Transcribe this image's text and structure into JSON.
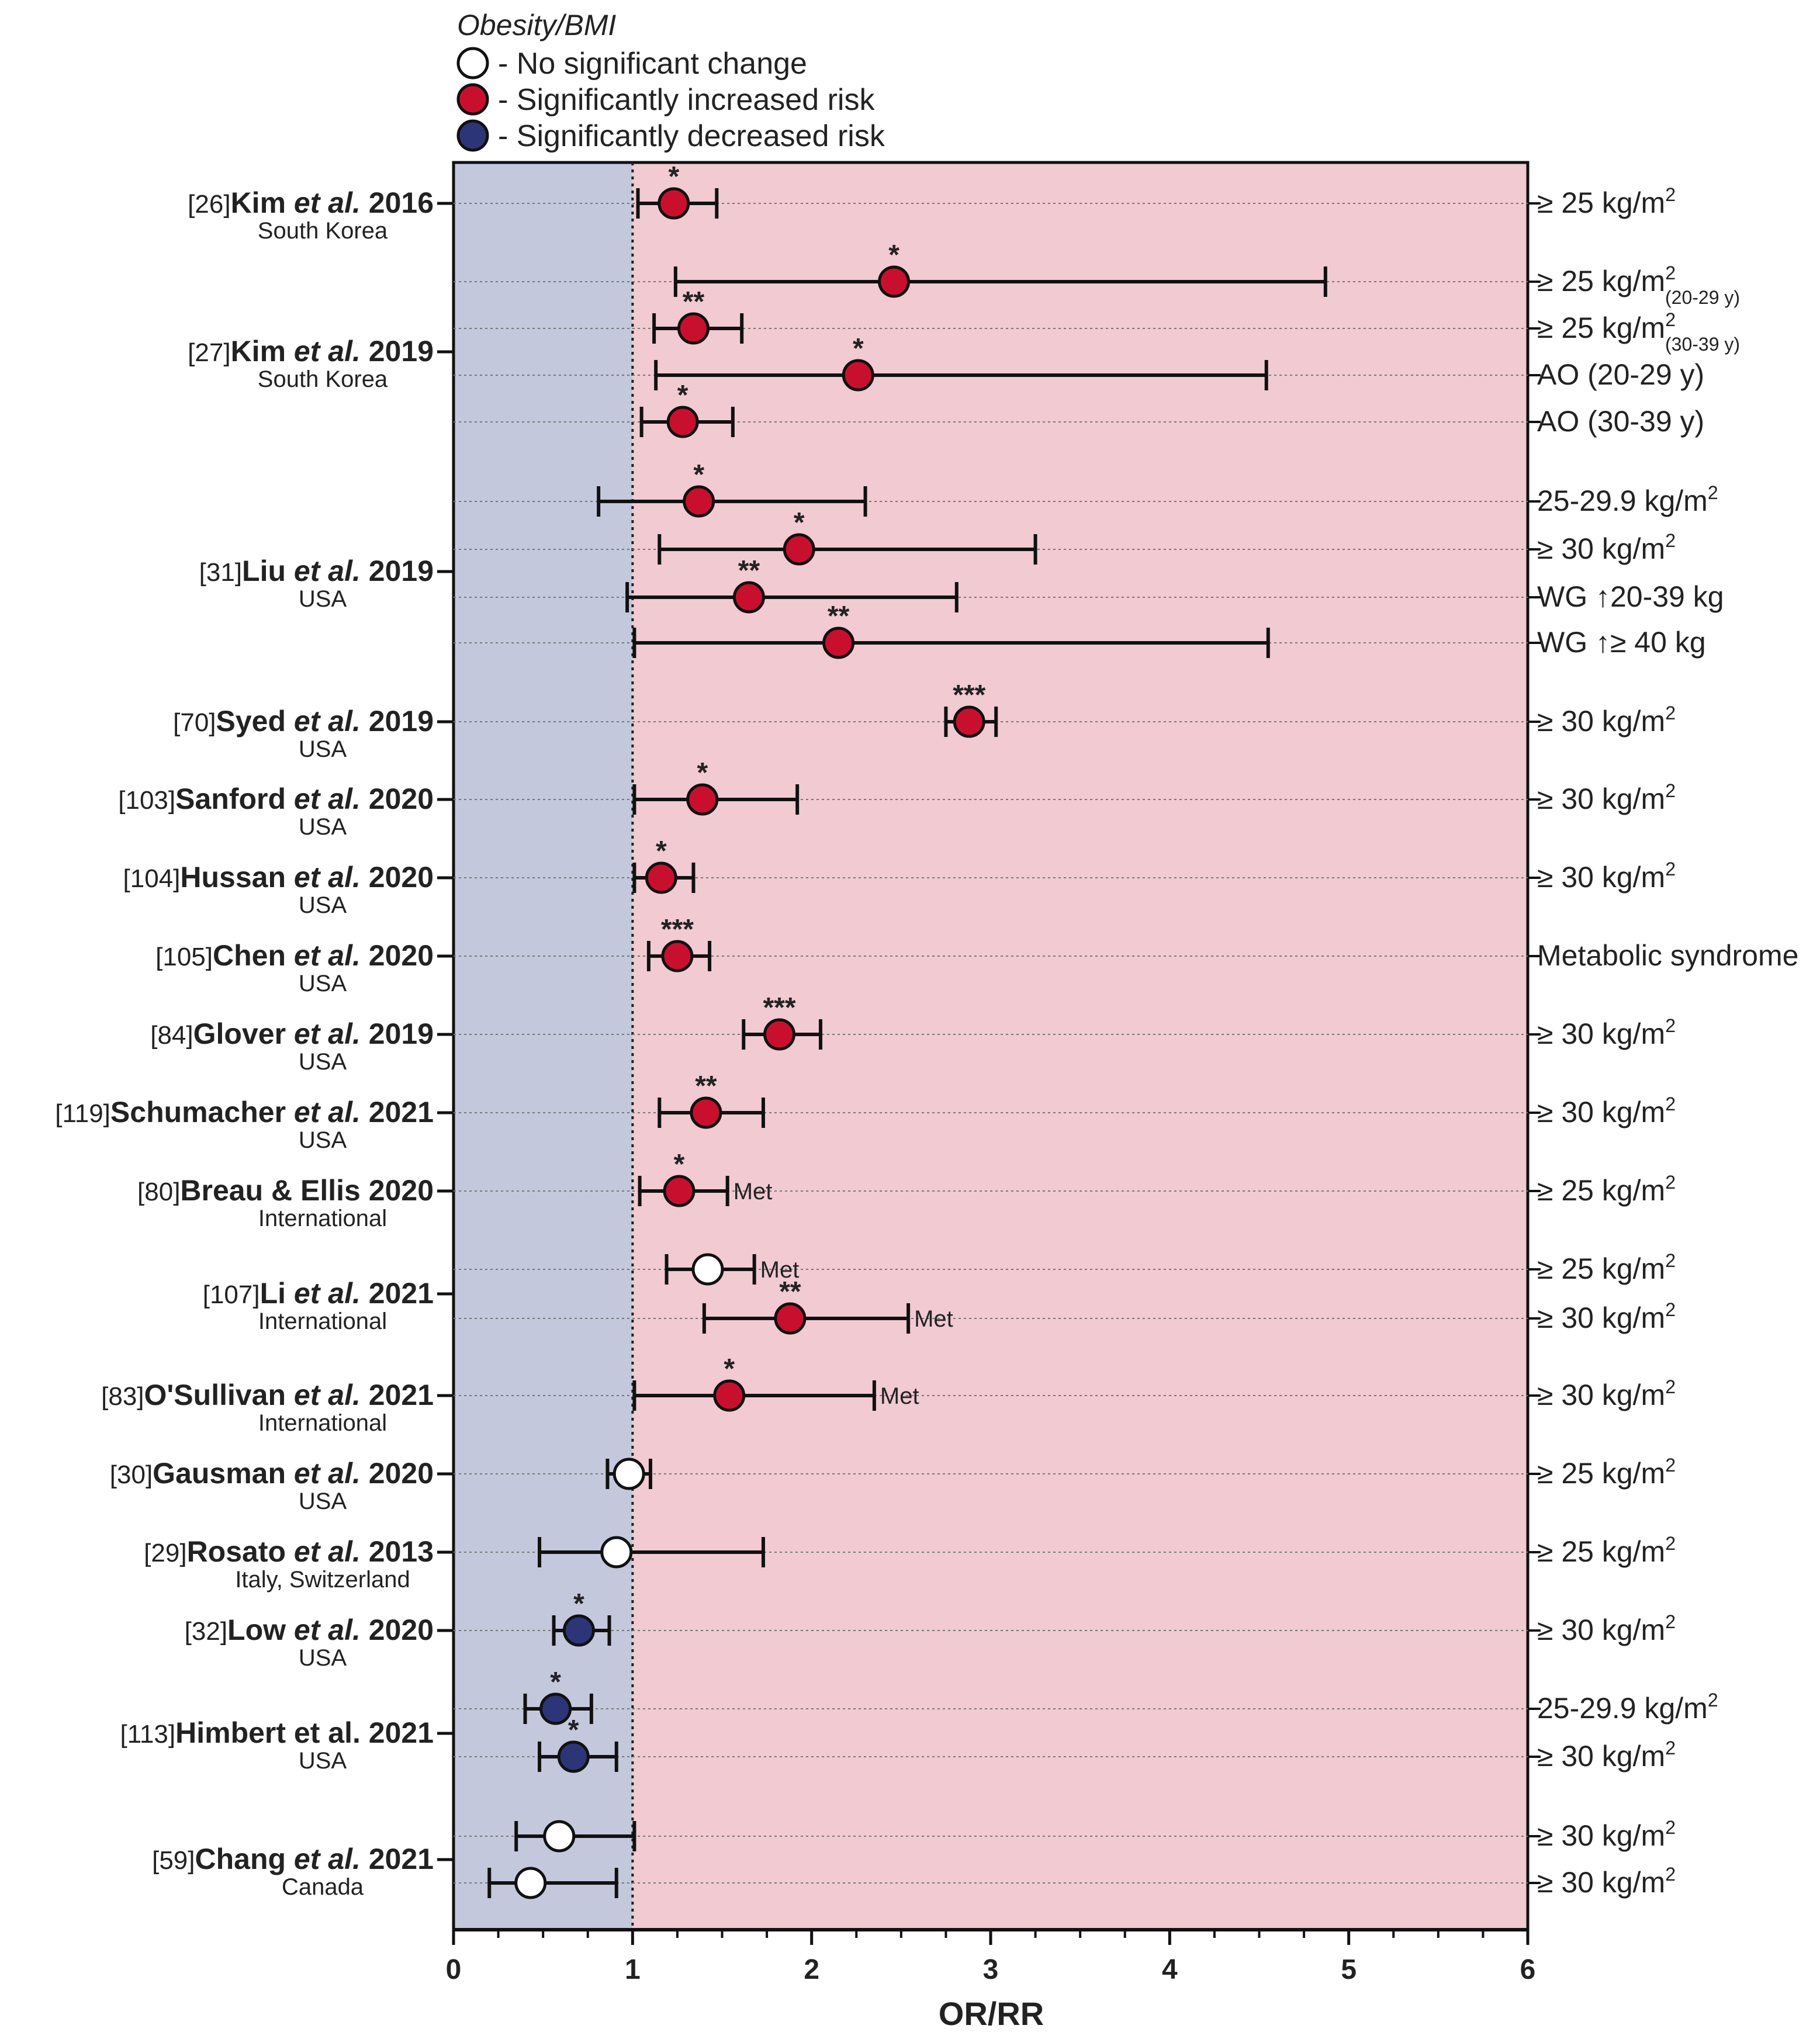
{
  "legend": {
    "title": "Obesity/BMI",
    "items": [
      {
        "label": "- No significant change",
        "fill": "#ffffff"
      },
      {
        "label": "- Significantly increased risk",
        "fill": "#c8102e"
      },
      {
        "label": "- Significantly decreased risk",
        "fill": "#2c3577"
      }
    ]
  },
  "colors": {
    "increased": "#c8102e",
    "decreased": "#2c3577",
    "none": "#ffffff",
    "left_band": "#c3c8dc",
    "right_band": "#f1cad2"
  },
  "chart_data": {
    "type": "forest",
    "xlabel": "OR/RR",
    "xlim": [
      0,
      6
    ],
    "xticks": [
      "0",
      "1",
      "2",
      "3",
      "4",
      "5",
      "6"
    ],
    "reference_line": 1,
    "studies": [
      {
        "ref": "[26]",
        "name": "Kim",
        "etal": "et al.",
        "year": "2016",
        "country": "South Korea",
        "rows": [
          {
            "est": 1.23,
            "lo": 1.03,
            "hi": 1.47,
            "sig": "*",
            "effect": "increased",
            "label": "≥ 25 kg/m",
            "sup": "2",
            "sub": ""
          }
        ]
      },
      {
        "ref": "[27]",
        "name": "Kim",
        "etal": "et al.",
        "year": "2019",
        "country": "South Korea",
        "rows": [
          {
            "est": 2.46,
            "lo": 1.24,
            "hi": 4.87,
            "sig": "*",
            "effect": "increased",
            "label": "≥ 25 kg/m",
            "sup": "2",
            "sub": "(20-29 y)"
          },
          {
            "est": 1.34,
            "lo": 1.12,
            "hi": 1.61,
            "sig": "**",
            "effect": "increased",
            "label": "≥ 25 kg/m",
            "sup": "2",
            "sub": "(30-39 y)"
          },
          {
            "est": 2.26,
            "lo": 1.13,
            "hi": 4.54,
            "sig": "*",
            "effect": "increased",
            "label": "AO (20-29 y)",
            "sup": "",
            "sub": ""
          },
          {
            "est": 1.28,
            "lo": 1.05,
            "hi": 1.56,
            "sig": "*",
            "effect": "increased",
            "label": "AO (30-39 y)",
            "sup": "",
            "sub": ""
          }
        ]
      },
      {
        "ref": "[31]",
        "name": "Liu",
        "etal": "et al.",
        "year": "2019",
        "country": "USA",
        "rows": [
          {
            "est": 1.37,
            "lo": 0.81,
            "hi": 2.3,
            "sig": "*",
            "effect": "increased",
            "label": "25-29.9 kg/m",
            "sup": "2",
            "sub": ""
          },
          {
            "est": 1.93,
            "lo": 1.15,
            "hi": 3.25,
            "sig": "*",
            "effect": "increased",
            "label": "≥ 30 kg/m",
            "sup": "2",
            "sub": ""
          },
          {
            "est": 1.65,
            "lo": 0.97,
            "hi": 2.81,
            "sig": "**",
            "effect": "increased",
            "label": "WG ↑20-39 kg",
            "sup": "",
            "sub": ""
          },
          {
            "est": 2.15,
            "lo": 1.01,
            "hi": 4.55,
            "sig": "**",
            "effect": "increased",
            "label": "WG ↑≥ 40 kg",
            "sup": "",
            "sub": ""
          }
        ]
      },
      {
        "ref": "[70]",
        "name": "Syed",
        "etal": "et al.",
        "year": "2019",
        "country": "USA",
        "rows": [
          {
            "est": 2.88,
            "lo": 2.75,
            "hi": 3.03,
            "sig": "***",
            "effect": "increased",
            "label": "≥ 30 kg/m",
            "sup": "2",
            "sub": "",
            "met": ""
          }
        ]
      },
      {
        "ref": "[103]",
        "name": "Sanford",
        "etal": "et al.",
        "year": "2020",
        "country": "USA",
        "rows": [
          {
            "est": 1.39,
            "lo": 1.01,
            "hi": 1.92,
            "sig": "*",
            "effect": "increased",
            "label": "≥ 30 kg/m",
            "sup": "2",
            "sub": ""
          }
        ]
      },
      {
        "ref": "[104]",
        "name": "Hussan",
        "etal": "et al.",
        "year": "2020",
        "country": "USA",
        "rows": [
          {
            "est": 1.16,
            "lo": 1.01,
            "hi": 1.34,
            "sig": "*",
            "effect": "increased",
            "label": "≥ 30 kg/m",
            "sup": "2",
            "sub": ""
          }
        ]
      },
      {
        "ref": "[105]",
        "name": "Chen",
        "etal": "et al.",
        "year": "2020",
        "country": "USA",
        "rows": [
          {
            "est": 1.25,
            "lo": 1.09,
            "hi": 1.43,
            "sig": "***",
            "effect": "increased",
            "label": "Metabolic syndrome",
            "sup": "",
            "sub": ""
          }
        ]
      },
      {
        "ref": "[84]",
        "name": "Glover",
        "etal": "et al.",
        "year": "2019",
        "country": "USA",
        "rows": [
          {
            "est": 1.82,
            "lo": 1.62,
            "hi": 2.05,
            "sig": "***",
            "effect": "increased",
            "label": "≥ 30 kg/m",
            "sup": "2",
            "sub": ""
          }
        ]
      },
      {
        "ref": "[119]",
        "name": "Schumacher",
        "etal": "et al.",
        "year": "2021",
        "country": "USA",
        "rows": [
          {
            "est": 1.41,
            "lo": 1.15,
            "hi": 1.73,
            "sig": "**",
            "effect": "increased",
            "label": "≥ 30 kg/m",
            "sup": "2",
            "sub": ""
          }
        ]
      },
      {
        "ref": "[80]",
        "name": "Breau & Ellis",
        "etal": "",
        "year": "2020",
        "country": "International",
        "rows": [
          {
            "est": 1.26,
            "lo": 1.04,
            "hi": 1.53,
            "sig": "*",
            "effect": "increased",
            "label": "≥ 25 kg/m",
            "sup": "2",
            "sub": "",
            "met": "Met"
          }
        ]
      },
      {
        "ref": "[107]",
        "name": "Li",
        "etal": "et al.",
        "year": "2021",
        "country": "International",
        "rows": [
          {
            "est": 1.42,
            "lo": 1.19,
            "hi": 1.68,
            "sig": "",
            "effect": "none",
            "label": "≥ 25 kg/m",
            "sup": "2",
            "sub": "",
            "met": "Met"
          },
          {
            "est": 1.88,
            "lo": 1.4,
            "hi": 2.54,
            "sig": "**",
            "effect": "increased",
            "label": "≥ 30 kg/m",
            "sup": "2",
            "sub": "",
            "met": "Met"
          }
        ]
      },
      {
        "ref": "[83]",
        "name": "O'Sullivan",
        "etal": "et al.",
        "year": "2021",
        "country": "International",
        "rows": [
          {
            "est": 1.54,
            "lo": 1.01,
            "hi": 2.35,
            "sig": "*",
            "effect": "increased",
            "label": "≥ 30 kg/m",
            "sup": "2",
            "sub": "",
            "met": "Met"
          }
        ]
      },
      {
        "ref": "[30]",
        "name": "Gausman",
        "etal": "et al.",
        "year": "2020",
        "country": "USA",
        "rows": [
          {
            "est": 0.98,
            "lo": 0.86,
            "hi": 1.1,
            "sig": "",
            "effect": "none",
            "label": "≥ 25 kg/m",
            "sup": "2",
            "sub": ""
          }
        ]
      },
      {
        "ref": "[29]",
        "name": "Rosato",
        "etal": "et al.",
        "year": "2013",
        "country": "Italy, Switzerland",
        "rows": [
          {
            "est": 0.91,
            "lo": 0.48,
            "hi": 1.73,
            "sig": "",
            "effect": "none",
            "label": "≥ 25 kg/m",
            "sup": "2",
            "sub": ""
          }
        ]
      },
      {
        "ref": "[32]",
        "name": "Low",
        "etal": "et al.",
        "year": "2020",
        "country": "USA",
        "rows": [
          {
            "est": 0.7,
            "lo": 0.56,
            "hi": 0.87,
            "sig": "*",
            "effect": "decreased",
            "label": "≥ 30 kg/m",
            "sup": "2",
            "sub": ""
          }
        ]
      },
      {
        "ref": "[113]",
        "name": "Himbert",
        "etal": "et al.",
        "year": "2021",
        "country": "USA",
        "etal_plain": true,
        "rows": [
          {
            "est": 0.57,
            "lo": 0.4,
            "hi": 0.77,
            "sig": "*",
            "effect": "decreased",
            "label": "25-29.9 kg/m",
            "sup": "2",
            "sub": ""
          },
          {
            "est": 0.67,
            "lo": 0.48,
            "hi": 0.91,
            "sig": "*",
            "effect": "decreased",
            "label": "≥ 30 kg/m",
            "sup": "2",
            "sub": ""
          }
        ]
      },
      {
        "ref": "[59]",
        "name": "Chang",
        "etal": "et al.",
        "year": "2021",
        "country": "Canada",
        "rows": [
          {
            "est": 0.59,
            "lo": 0.35,
            "hi": 1.01,
            "sig": "",
            "effect": "none",
            "label": "≥ 30 kg/m",
            "sup": "2",
            "sub": ""
          },
          {
            "est": 0.43,
            "lo": 0.2,
            "hi": 0.91,
            "sig": "",
            "effect": "none",
            "label": "≥ 30 kg/m",
            "sup": "2",
            "sub": ""
          }
        ]
      }
    ]
  }
}
